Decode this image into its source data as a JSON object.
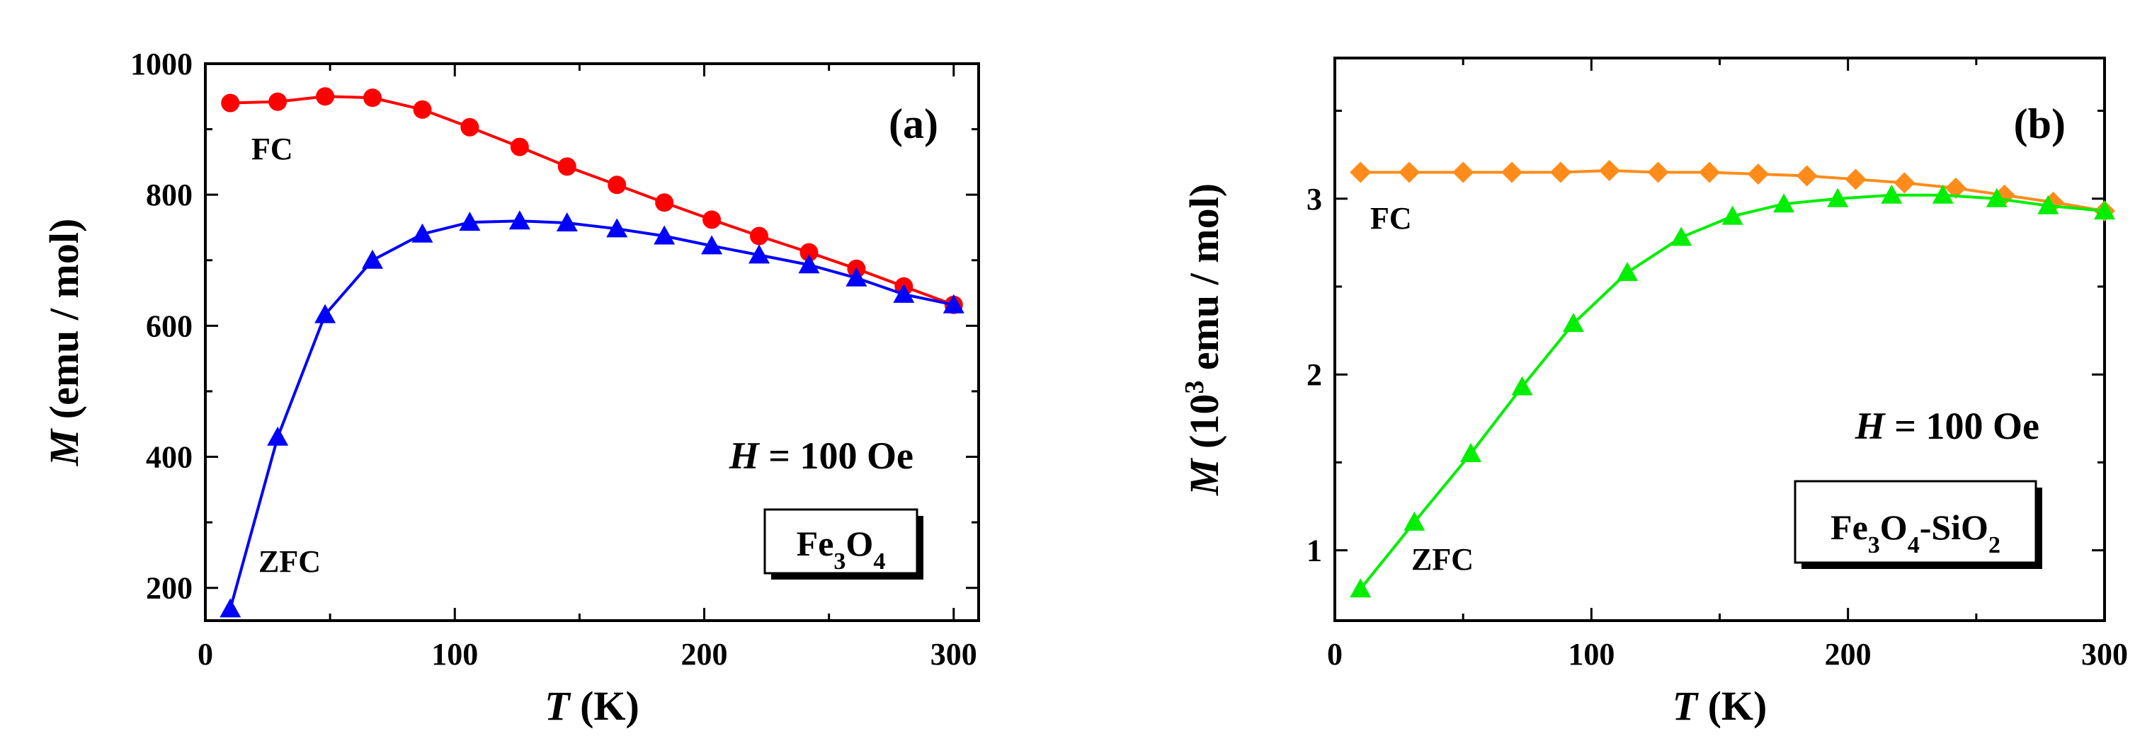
{
  "chart_data": [
    {
      "panel_label": "(a)",
      "type": "line",
      "xlim": [
        0,
        310
      ],
      "ylim": [
        150,
        1000
      ],
      "xticks": [
        0,
        100,
        200,
        300
      ],
      "yticks": [
        200,
        400,
        600,
        800,
        1000
      ],
      "xlabel": {
        "italic": "T",
        "rest": " (K)"
      },
      "ylabel": {
        "italic": "M",
        "rest": " (emu / mol)"
      },
      "field": {
        "italic": "H",
        "rest": " = 100 Oe"
      },
      "sample": [
        {
          "text": "Fe",
          "sub": false
        },
        {
          "text": "3",
          "sub": true
        },
        {
          "text": "O",
          "sub": false
        },
        {
          "text": "4",
          "sub": true
        }
      ],
      "series": [
        {
          "name": "FC",
          "color": "#ff0000",
          "marker": "circle",
          "x": [
            10,
            29,
            48,
            67,
            87,
            106,
            126,
            145,
            165,
            184,
            203,
            222,
            242,
            261,
            280,
            300
          ],
          "values": [
            940,
            942,
            950,
            948,
            930,
            903,
            873,
            843,
            815,
            788,
            762,
            737,
            712,
            687,
            660,
            632
          ]
        },
        {
          "name": "ZFC",
          "color": "#0000ff",
          "marker": "triangle",
          "x": [
            10,
            29,
            48,
            67,
            87,
            106,
            126,
            145,
            165,
            184,
            203,
            222,
            242,
            261,
            280,
            300
          ],
          "values": [
            168,
            430,
            617,
            700,
            740,
            758,
            760,
            757,
            748,
            737,
            722,
            708,
            693,
            673,
            648,
            632
          ]
        }
      ]
    },
    {
      "panel_label": "(b)",
      "type": "line",
      "xlim": [
        0,
        300
      ],
      "ylim": [
        0.6,
        3.8
      ],
      "xticks": [
        0,
        100,
        200,
        300
      ],
      "yticks": [
        1,
        2,
        3
      ],
      "xlabel": {
        "italic": "T",
        "rest": " (K)"
      },
      "ylabel": {
        "italic": "M",
        "pre": " (10",
        "sup": "3",
        "rest": " emu / mol)"
      },
      "field": {
        "italic": "H",
        "rest": " = 100 Oe"
      },
      "sample": [
        {
          "text": "Fe",
          "sub": false
        },
        {
          "text": "3",
          "sub": true
        },
        {
          "text": "O",
          "sub": false
        },
        {
          "text": "4",
          "sub": true
        },
        {
          "text": "-SiO",
          "sub": false
        },
        {
          "text": "2",
          "sub": true
        }
      ],
      "series": [
        {
          "name": "FC",
          "color": "#ff8c1a",
          "marker": "diamond",
          "x": [
            10,
            29,
            50,
            69,
            88,
            107,
            126,
            146,
            165,
            184,
            203,
            222,
            242,
            261,
            280,
            300
          ],
          "values": [
            3.15,
            3.15,
            3.15,
            3.15,
            3.15,
            3.16,
            3.15,
            3.15,
            3.14,
            3.13,
            3.11,
            3.09,
            3.06,
            3.02,
            2.98,
            2.93
          ]
        },
        {
          "name": "ZFC",
          "color": "#00ee00",
          "marker": "triangle",
          "x": [
            10,
            31,
            53,
            73,
            93,
            114,
            135,
            155,
            175,
            196,
            217,
            237,
            258,
            278,
            300
          ],
          "values": [
            0.78,
            1.16,
            1.55,
            1.93,
            2.29,
            2.58,
            2.78,
            2.9,
            2.97,
            3.0,
            3.02,
            3.02,
            3.0,
            2.96,
            2.93
          ]
        }
      ]
    }
  ]
}
